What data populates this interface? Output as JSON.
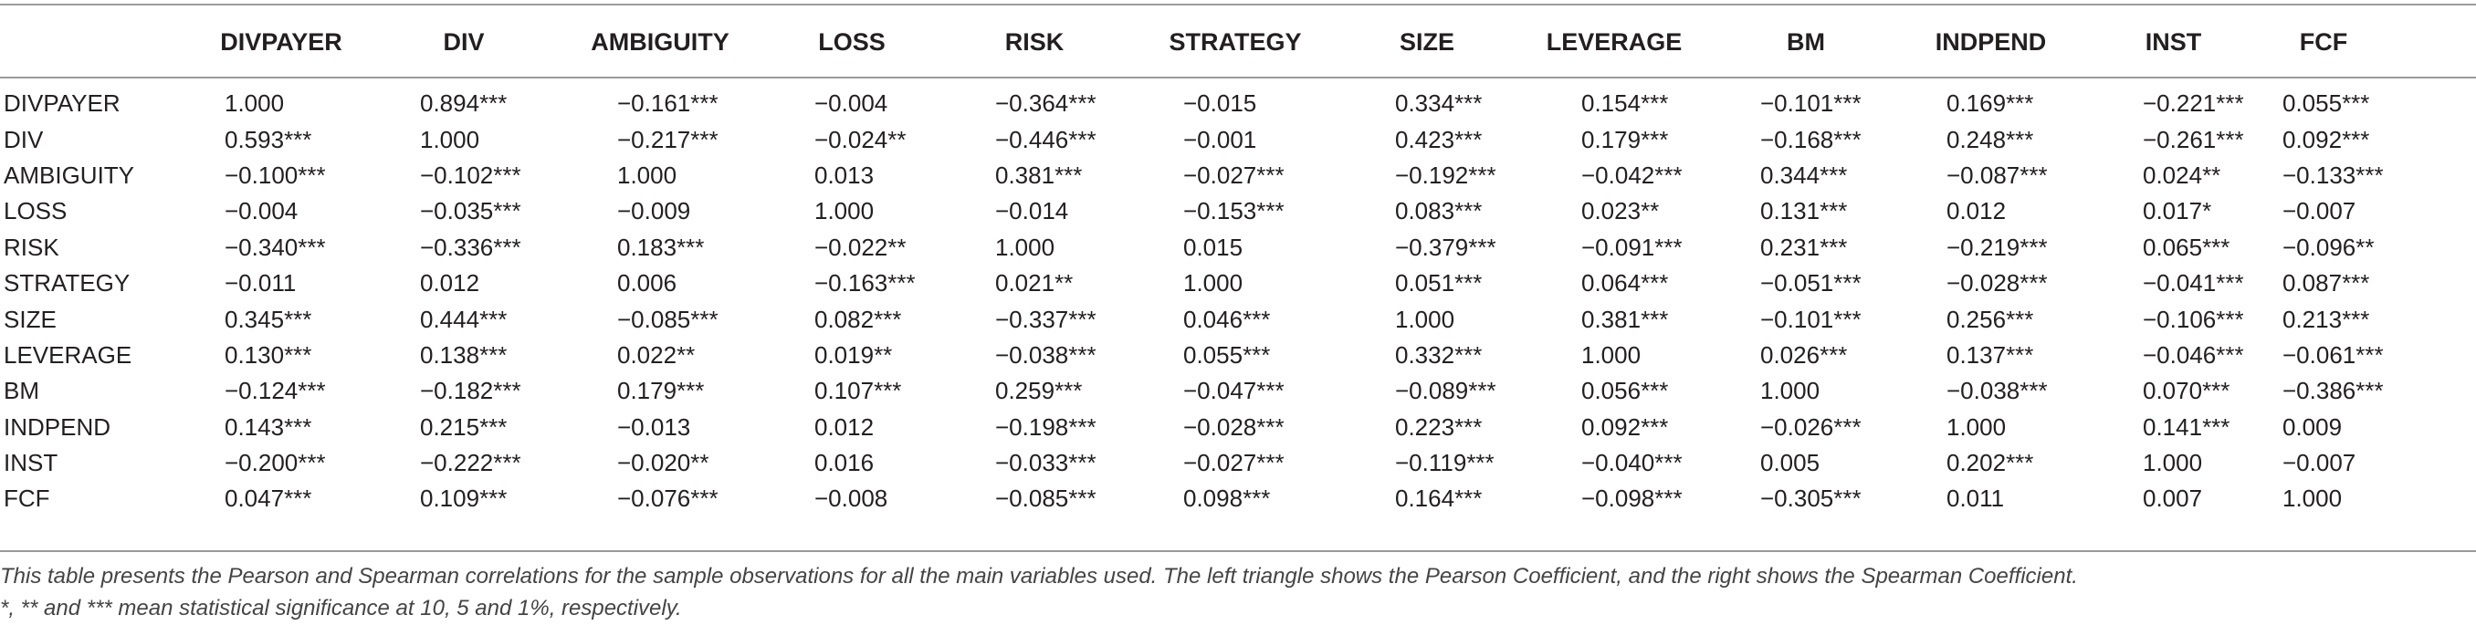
{
  "columns": [
    "",
    "DIVPAYER",
    "DIV",
    "AMBIGUITY",
    "LOSS",
    "RISK",
    "STRATEGY",
    "SIZE",
    "LEVERAGE",
    "BM",
    "INDPEND",
    "INST",
    "FCF"
  ],
  "rows": [
    [
      "DIVPAYER",
      "1.000",
      "0.894***",
      "−0.161***",
      "−0.004",
      "−0.364***",
      "−0.015",
      "0.334***",
      "0.154***",
      "−0.101***",
      "0.169***",
      "−0.221***",
      "0.055***"
    ],
    [
      "DIV",
      "0.593***",
      "1.000",
      "−0.217***",
      "−0.024**",
      "−0.446***",
      "−0.001",
      "0.423***",
      "0.179***",
      "−0.168***",
      "0.248***",
      "−0.261***",
      "0.092***"
    ],
    [
      "AMBIGUITY",
      "−0.100***",
      "−0.102***",
      "1.000",
      "0.013",
      "0.381***",
      "−0.027***",
      "−0.192***",
      "−0.042***",
      "0.344***",
      "−0.087***",
      "0.024**",
      "−0.133***"
    ],
    [
      "LOSS",
      "−0.004",
      "−0.035***",
      "−0.009",
      "1.000",
      "−0.014",
      "−0.153***",
      "0.083***",
      "0.023**",
      "0.131***",
      "0.012",
      "0.017*",
      "−0.007"
    ],
    [
      "RISK",
      "−0.340***",
      "−0.336***",
      "0.183***",
      "−0.022**",
      "1.000",
      "0.015",
      "−0.379***",
      "−0.091***",
      "0.231***",
      "−0.219***",
      "0.065***",
      "−0.096**"
    ],
    [
      "STRATEGY",
      "−0.011",
      "0.012",
      "0.006",
      "−0.163***",
      "0.021**",
      "1.000",
      "0.051***",
      "0.064***",
      "−0.051***",
      "−0.028***",
      "−0.041***",
      "0.087***"
    ],
    [
      "SIZE",
      "0.345***",
      "0.444***",
      "−0.085***",
      "0.082***",
      "−0.337***",
      "0.046***",
      "1.000",
      "0.381***",
      "−0.101***",
      "0.256***",
      "−0.106***",
      "0.213***"
    ],
    [
      "LEVERAGE",
      "0.130***",
      "0.138***",
      "0.022**",
      "0.019**",
      "−0.038***",
      "0.055***",
      "0.332***",
      "1.000",
      "0.026***",
      "0.137***",
      "−0.046***",
      "−0.061***"
    ],
    [
      "BM",
      "−0.124***",
      "−0.182***",
      "0.179***",
      "0.107***",
      "0.259***",
      "−0.047***",
      "−0.089***",
      "0.056***",
      "1.000",
      "−0.038***",
      "0.070***",
      "−0.386***"
    ],
    [
      "INDPEND",
      "0.143***",
      "0.215***",
      "−0.013",
      "0.012",
      "−0.198***",
      "−0.028***",
      "0.223***",
      "0.092***",
      "−0.026***",
      "1.000",
      "0.141***",
      "0.009"
    ],
    [
      "INST",
      "−0.200***",
      "−0.222***",
      "−0.020**",
      "0.016",
      "−0.033***",
      "−0.027***",
      "−0.119***",
      "−0.040***",
      "0.005",
      "0.202***",
      "1.000",
      "−0.007"
    ],
    [
      "FCF",
      "0.047***",
      "0.109***",
      "−0.076***",
      "−0.008",
      "−0.085***",
      "0.098***",
      "0.164***",
      "−0.098***",
      "−0.305***",
      "0.011",
      "0.007",
      "1.000"
    ]
  ],
  "footnotes": {
    "description": "This table presents the Pearson and Spearman correlations for the sample observations for all the main variables used. The left triangle shows the Pearson Coefficient, and the right shows the Spearman Coefficient.",
    "significance": "*, ** and *** mean statistical significance at 10, 5 and 1%, respectively."
  }
}
